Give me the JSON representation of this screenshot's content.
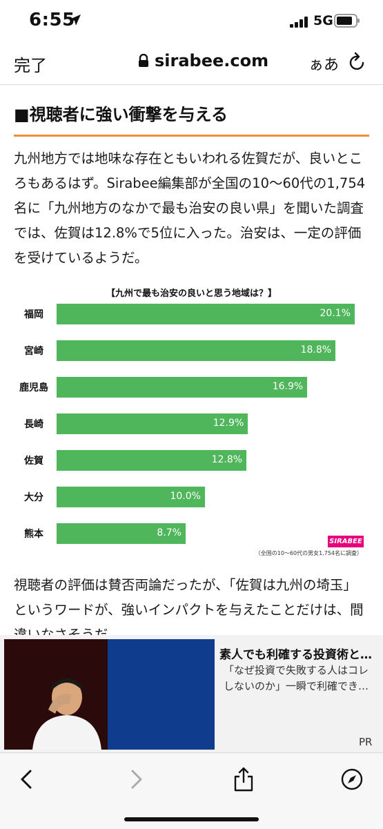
{
  "status_bar": {
    "time": "6:55",
    "network": "5G"
  },
  "nav": {
    "done": "完了",
    "url": "sirabee.com",
    "text_size": "ぁあ"
  },
  "article": {
    "heading": "■視聴者に強い衝撃を与える",
    "paragraph1": "九州地方では地味な存在ともいわれる佐賀だが、良いところもあるはず。Sirabee編集部が全国の10〜60代の1,754名に「九州地方のなかで最も治安の良い県」を聞いた調査では、佐賀は12.8%で5位に入った。治安は、一定の評価を受けているようだ。",
    "paragraph2": "視聴者の評価は賛否両論だったが、「佐賀は九州の埼玉」というワードが、強いインパクトを与えたことだけは、間違いなさそうだ。"
  },
  "chart_data": {
    "type": "bar",
    "orientation": "horizontal",
    "title": "【九州で最も治安の良いと思う地域は？】",
    "categories": [
      "福岡",
      "宮崎",
      "鹿児島",
      "長崎",
      "佐賀",
      "大分",
      "熊本"
    ],
    "values": [
      20.1,
      18.8,
      16.9,
      12.9,
      12.8,
      10.0,
      8.7
    ],
    "value_labels": [
      "20.1%",
      "18.8%",
      "16.9%",
      "12.9%",
      "12.8%",
      "10.0%",
      "8.7%"
    ],
    "unit": "%",
    "bar_color": "#4fb65c",
    "logo": "SIRABEE",
    "source_note": "（全国の10〜60代の男女1,754名に調査）"
  },
  "ad": {
    "title": "素人でも利確する投資術と…",
    "description": "「なぜ投資で失敗する人はコレしないのか」一瞬で利確でき…",
    "pr_label": "PR"
  },
  "toolbar": {
    "icons": [
      "back-icon",
      "forward-icon",
      "share-icon",
      "compass-icon"
    ]
  },
  "colors": {
    "accent_underline": "#ee8e3b",
    "bar": "#4fb65c",
    "logo": "#e6007e"
  }
}
